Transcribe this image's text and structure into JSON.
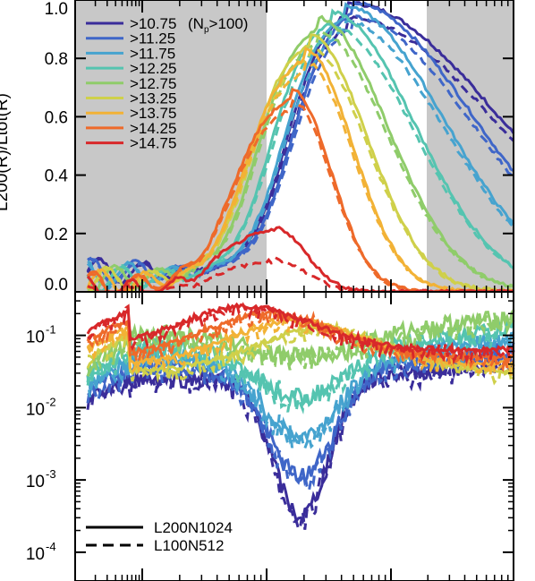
{
  "chart_data": [
    {
      "panel": "top",
      "type": "line",
      "ylabel": "L200(R)/Ltot(R)",
      "xscale": "log",
      "ylim": [
        0.0,
        1.0
      ],
      "yticks": [
        "0.0",
        "0.2",
        "0.4",
        "0.6",
        "0.8",
        "1.0"
      ],
      "shaded_regions": "left and right edges shaded grey (resolution limits)",
      "legend": {
        "placement": "top-left",
        "entries": [
          ">10.75",
          ">11.25",
          ">11.75",
          ">12.25",
          ">12.75",
          ">13.25",
          ">13.75",
          ">14.25",
          ">14.75"
        ],
        "first_entry_note": "(N",
        "first_entry_note_sub": "p",
        "first_entry_note_end": ">100)"
      },
      "series": [
        {
          "name": ">10.75",
          "color": "#3a2d9a",
          "peak": 0.99,
          "peak_x": 0.61,
          "low_start": 0.07
        },
        {
          "name": ">11.25",
          "color": "#3f66c8",
          "peak": 0.99,
          "peak_x": 0.62,
          "low_start": 0.07
        },
        {
          "name": ">11.75",
          "color": "#46a3cf",
          "peak": 0.98,
          "peak_x": 0.6,
          "low_start": 0.06
        },
        {
          "name": ">12.25",
          "color": "#55c4b0",
          "peak": 0.96,
          "peak_x": 0.57,
          "low_start": 0.05
        },
        {
          "name": ">12.75",
          "color": "#8fcc6a",
          "peak": 0.94,
          "peak_x": 0.54,
          "low_start": 0.05
        },
        {
          "name": ">13.25",
          "color": "#cfd04a",
          "peak": 0.88,
          "peak_x": 0.52,
          "low_start": 0.04
        },
        {
          "name": ">13.75",
          "color": "#f2b236",
          "peak": 0.83,
          "peak_x": 0.51,
          "low_start": 0.03
        },
        {
          "name": ">14.25",
          "color": "#ee6a2a",
          "peak": 0.69,
          "peak_x": 0.48,
          "low_start": 0.02
        },
        {
          "name": ">14.75",
          "color": "#d8282a",
          "peak": 0.22,
          "peak_x": 0.44,
          "low_start": 0.0
        }
      ]
    },
    {
      "panel": "bottom",
      "type": "line",
      "yscale": "log",
      "ylim": [
        4e-05,
        0.4
      ],
      "yticks": [
        "10",
        "10",
        "10",
        "10"
      ],
      "ytick_exponents": [
        "-1",
        "-2",
        "-3",
        "-4"
      ],
      "legend": {
        "placement": "bottom-left",
        "entries": [
          {
            "label": "L200N1024",
            "style": "solid"
          },
          {
            "label": "L100N512",
            "style": "dashed"
          }
        ]
      }
    }
  ]
}
